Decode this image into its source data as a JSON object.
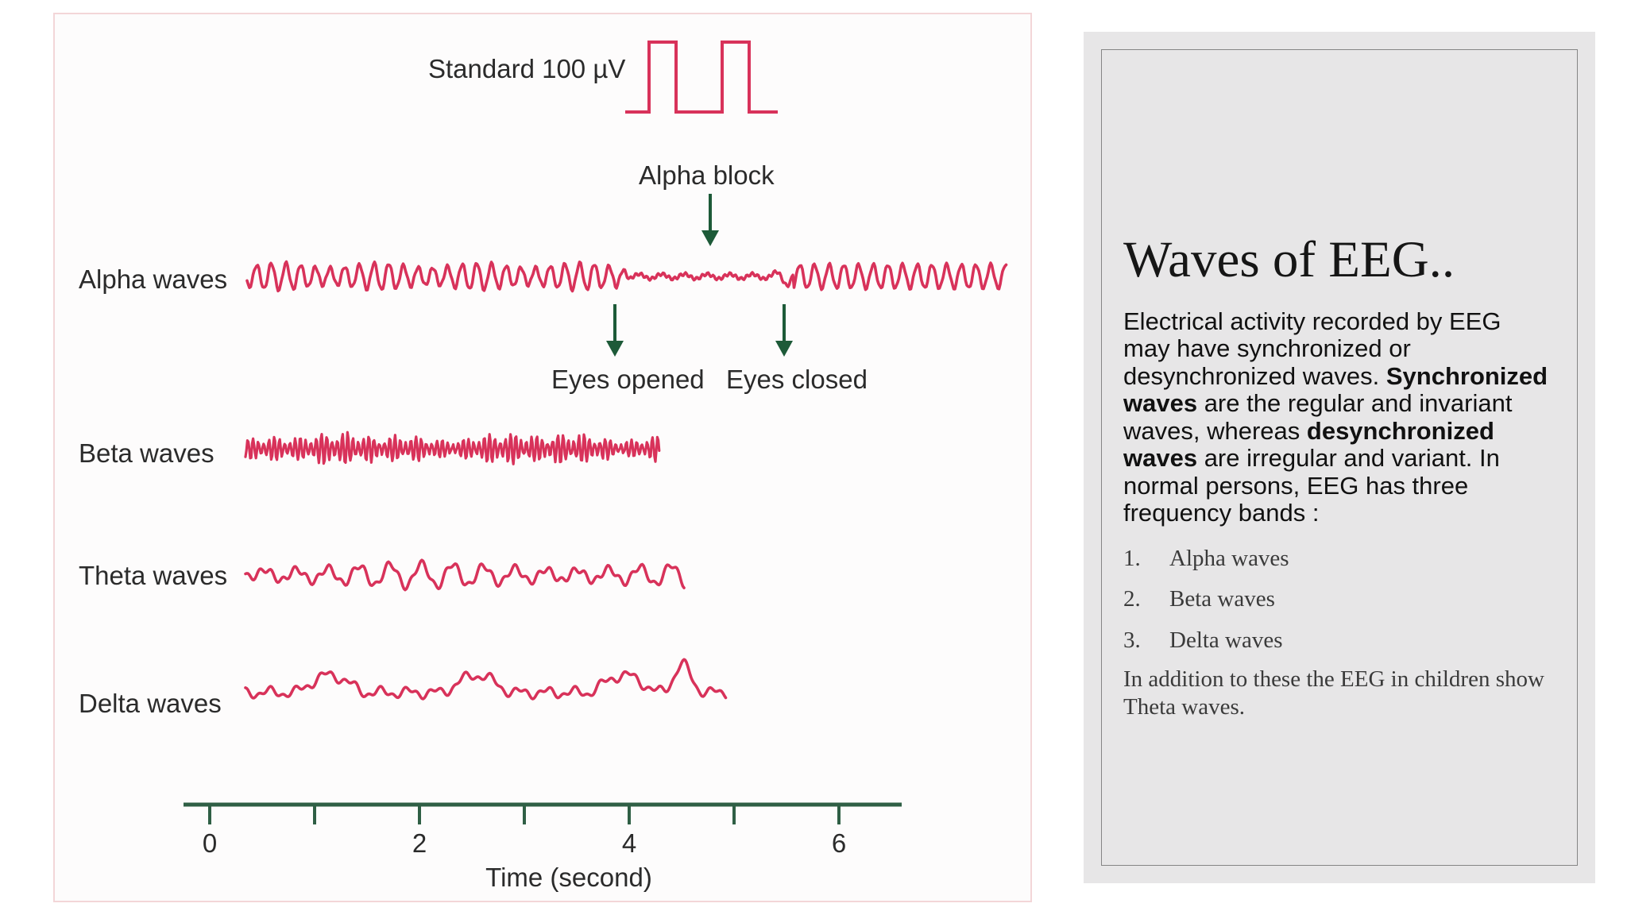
{
  "figure": {
    "standard_label": "Standard 100 µV",
    "alpha_block_label": "Alpha block",
    "eyes_opened_label": "Eyes opened",
    "eyes_closed_label": "Eyes closed",
    "waves": [
      {
        "label": "Alpha waves"
      },
      {
        "label": "Beta waves"
      },
      {
        "label": "Theta waves"
      },
      {
        "label": "Delta waves"
      }
    ],
    "axis": {
      "title": "Time (second)",
      "ticks": [
        "0",
        "2",
        "4",
        "6"
      ]
    },
    "colors": {
      "trace": "#d8325a",
      "arrow": "#1d5a38",
      "axis": "#2f5f45"
    }
  },
  "slide": {
    "title": "Waves of EEG..",
    "body": {
      "intro": "Electrical activity recorded by EEG may have synchronized or desynchronized waves. ",
      "bold1": "Synchronized waves",
      "mid": " are the regular and invariant waves, whereas ",
      "bold2": "desynchronized waves",
      "end": " are irregular and variant. In normal persons, EEG has three frequency bands :"
    },
    "list": [
      {
        "num": "1.",
        "text": "Alpha waves"
      },
      {
        "num": "2.",
        "text": "Beta waves"
      },
      {
        "num": "3.",
        "text": "Delta waves"
      }
    ],
    "note": "In addition to these the EEG in children show Theta waves."
  }
}
